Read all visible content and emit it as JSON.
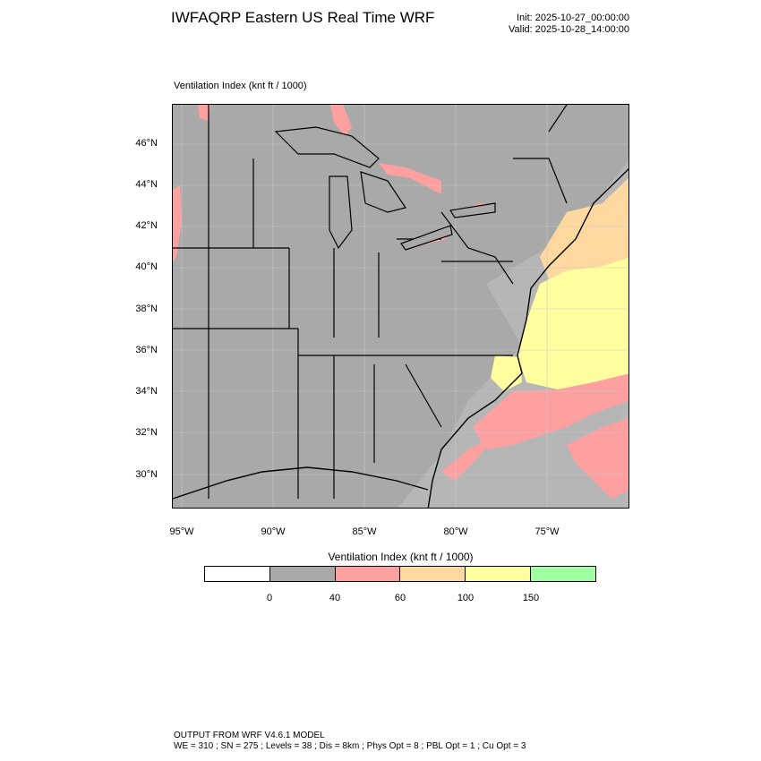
{
  "header": {
    "title": "IWFAQRP Eastern US Real Time WRF",
    "init": "Init: 2025-10-27_00:00:00",
    "valid": "Valid: 2025-10-28_14:00:00"
  },
  "plot": {
    "label": "Ventilation Index   (knt ft / 1000)"
  },
  "axes": {
    "lat_labels": [
      "46°N",
      "44°N",
      "42°N",
      "40°N",
      "38°N",
      "36°N",
      "34°N",
      "32°N",
      "30°N"
    ],
    "lon_labels": [
      "95°W",
      "90°W",
      "85°W",
      "80°W",
      "75°W"
    ]
  },
  "legend": {
    "title": "Ventilation Index  (knt ft / 1000)",
    "colors": [
      "#ffffff",
      "#a9a9a9",
      "#ffa0a0",
      "#ffd8a0",
      "#ffffa0",
      "#a0ffa0"
    ],
    "ticks": [
      "0",
      "40",
      "60",
      "100",
      "150"
    ]
  },
  "map_colors": {
    "background": "#a9a9a9",
    "low": "#ffa0a0",
    "mid": "#ffd8a0",
    "high": "#ffffa0"
  },
  "footer": {
    "line1": "OUTPUT FROM WRF V4.6.1 MODEL",
    "line2": "WE = 310 ; SN = 275 ; Levels = 38 ; Dis = 8km ; Phys Opt = 8 ; PBL Opt = 1 ; Cu Opt = 3"
  }
}
